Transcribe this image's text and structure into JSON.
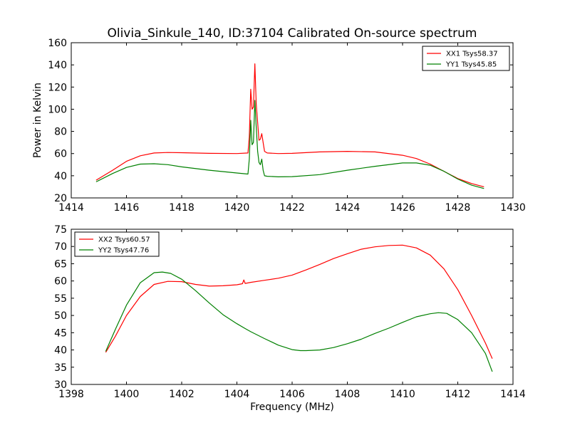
{
  "chart_data": [
    {
      "type": "line",
      "title": "Olivia_Sinkule_140, ID:37104 Calibrated On-source spectrum",
      "xlabel": "",
      "ylabel": "Power in Kelvin",
      "xlim": [
        1414,
        1430
      ],
      "ylim": [
        20,
        160
      ],
      "xticks": [
        1414,
        1416,
        1418,
        1420,
        1422,
        1424,
        1426,
        1428,
        1430
      ],
      "yticks": [
        20,
        40,
        60,
        80,
        100,
        120,
        140,
        160
      ],
      "grid": false,
      "legend_position": "top-right",
      "series": [
        {
          "name": "XX1 Tsys58.37",
          "color": "#ff0000",
          "x": [
            1414.9,
            1415.5,
            1416.0,
            1416.5,
            1417.0,
            1417.5,
            1418.0,
            1419.0,
            1420.0,
            1420.4,
            1420.45,
            1420.5,
            1420.55,
            1420.6,
            1420.65,
            1420.7,
            1420.75,
            1420.8,
            1420.85,
            1420.9,
            1420.95,
            1421.0,
            1421.1,
            1421.5,
            1422.0,
            1423.0,
            1424.0,
            1425.0,
            1426.0,
            1426.5,
            1427.0,
            1427.5,
            1428.0,
            1428.5,
            1428.95
          ],
          "y": [
            36,
            45,
            53,
            58,
            60.5,
            61,
            60.8,
            60.2,
            60,
            60.5,
            75,
            118,
            100,
            102,
            141,
            105,
            88,
            72,
            73,
            78,
            70,
            62,
            60.5,
            60,
            60.2,
            61.5,
            62,
            61.5,
            58.5,
            55.5,
            50.5,
            44,
            37.5,
            33,
            30
          ]
        },
        {
          "name": "YY1 Tsys45.85",
          "color": "#008000",
          "x": [
            1414.9,
            1415.5,
            1416.0,
            1416.5,
            1417.0,
            1417.5,
            1418.0,
            1419.0,
            1420.0,
            1420.4,
            1420.45,
            1420.5,
            1420.55,
            1420.6,
            1420.65,
            1420.7,
            1420.75,
            1420.8,
            1420.85,
            1420.9,
            1420.95,
            1421.0,
            1421.1,
            1421.5,
            1422.0,
            1423.0,
            1424.0,
            1425.0,
            1426.0,
            1426.5,
            1427.0,
            1427.5,
            1428.0,
            1428.5,
            1428.95
          ],
          "y": [
            34.5,
            42,
            47.5,
            50.5,
            50.8,
            50,
            48,
            45,
            42.5,
            41.5,
            55,
            90,
            68,
            70,
            108,
            84,
            62,
            52,
            50,
            55,
            45,
            40,
            39.5,
            39,
            39.2,
            41,
            45,
            48.5,
            51.5,
            51.5,
            49.5,
            44,
            37,
            31.5,
            28.5
          ]
        }
      ]
    },
    {
      "type": "line",
      "title": "",
      "xlabel": "Frequency (MHz)",
      "ylabel": "",
      "xlim": [
        1398,
        1414
      ],
      "ylim": [
        30,
        75
      ],
      "xticks": [
        1398,
        1400,
        1402,
        1404,
        1406,
        1408,
        1410,
        1412,
        1414
      ],
      "yticks": [
        30,
        35,
        40,
        45,
        50,
        55,
        60,
        65,
        70,
        75
      ],
      "grid": false,
      "legend_position": "top-left",
      "series": [
        {
          "name": "XX2 Tsys60.57",
          "color": "#ff0000",
          "x": [
            1399.25,
            1399.6,
            1400.0,
            1400.5,
            1401.0,
            1401.5,
            1402.0,
            1402.5,
            1403.0,
            1403.5,
            1404.0,
            1404.2,
            1404.25,
            1404.3,
            1404.5,
            1405.0,
            1405.5,
            1406.0,
            1406.5,
            1407.0,
            1407.5,
            1408.0,
            1408.5,
            1409.0,
            1409.5,
            1410.0,
            1410.5,
            1411.0,
            1411.5,
            1412.0,
            1412.5,
            1413.0,
            1413.25
          ],
          "y": [
            39.3,
            44,
            50,
            55.5,
            59,
            59.9,
            59.8,
            59,
            58.5,
            58.6,
            58.9,
            59.2,
            60.3,
            59.3,
            59.6,
            60.2,
            60.8,
            61.7,
            63.2,
            64.8,
            66.5,
            67.9,
            69.2,
            69.9,
            70.3,
            70.4,
            69.6,
            67.5,
            63.5,
            57.5,
            50,
            42,
            37.5
          ]
        },
        {
          "name": "YY2 Tsys47.76",
          "color": "#008000",
          "x": [
            1399.25,
            1399.6,
            1400.0,
            1400.5,
            1401.0,
            1401.3,
            1401.6,
            1402.0,
            1402.5,
            1403.0,
            1403.5,
            1404.0,
            1404.3,
            1404.5,
            1405.0,
            1405.5,
            1406.0,
            1406.3,
            1406.5,
            1407.0,
            1407.5,
            1408.0,
            1408.5,
            1409.0,
            1409.5,
            1410.0,
            1410.5,
            1411.0,
            1411.3,
            1411.6,
            1412.0,
            1412.5,
            1413.0,
            1413.25
          ],
          "y": [
            39.6,
            46,
            53,
            59.5,
            62.4,
            62.6,
            62.2,
            60.5,
            57.2,
            53.6,
            50.2,
            47.6,
            46.2,
            45.3,
            43.3,
            41.4,
            40.1,
            39.8,
            39.8,
            40,
            40.7,
            41.8,
            43.1,
            44.8,
            46.3,
            48,
            49.6,
            50.5,
            50.8,
            50.6,
            48.8,
            45,
            39,
            33.7
          ]
        }
      ]
    }
  ]
}
